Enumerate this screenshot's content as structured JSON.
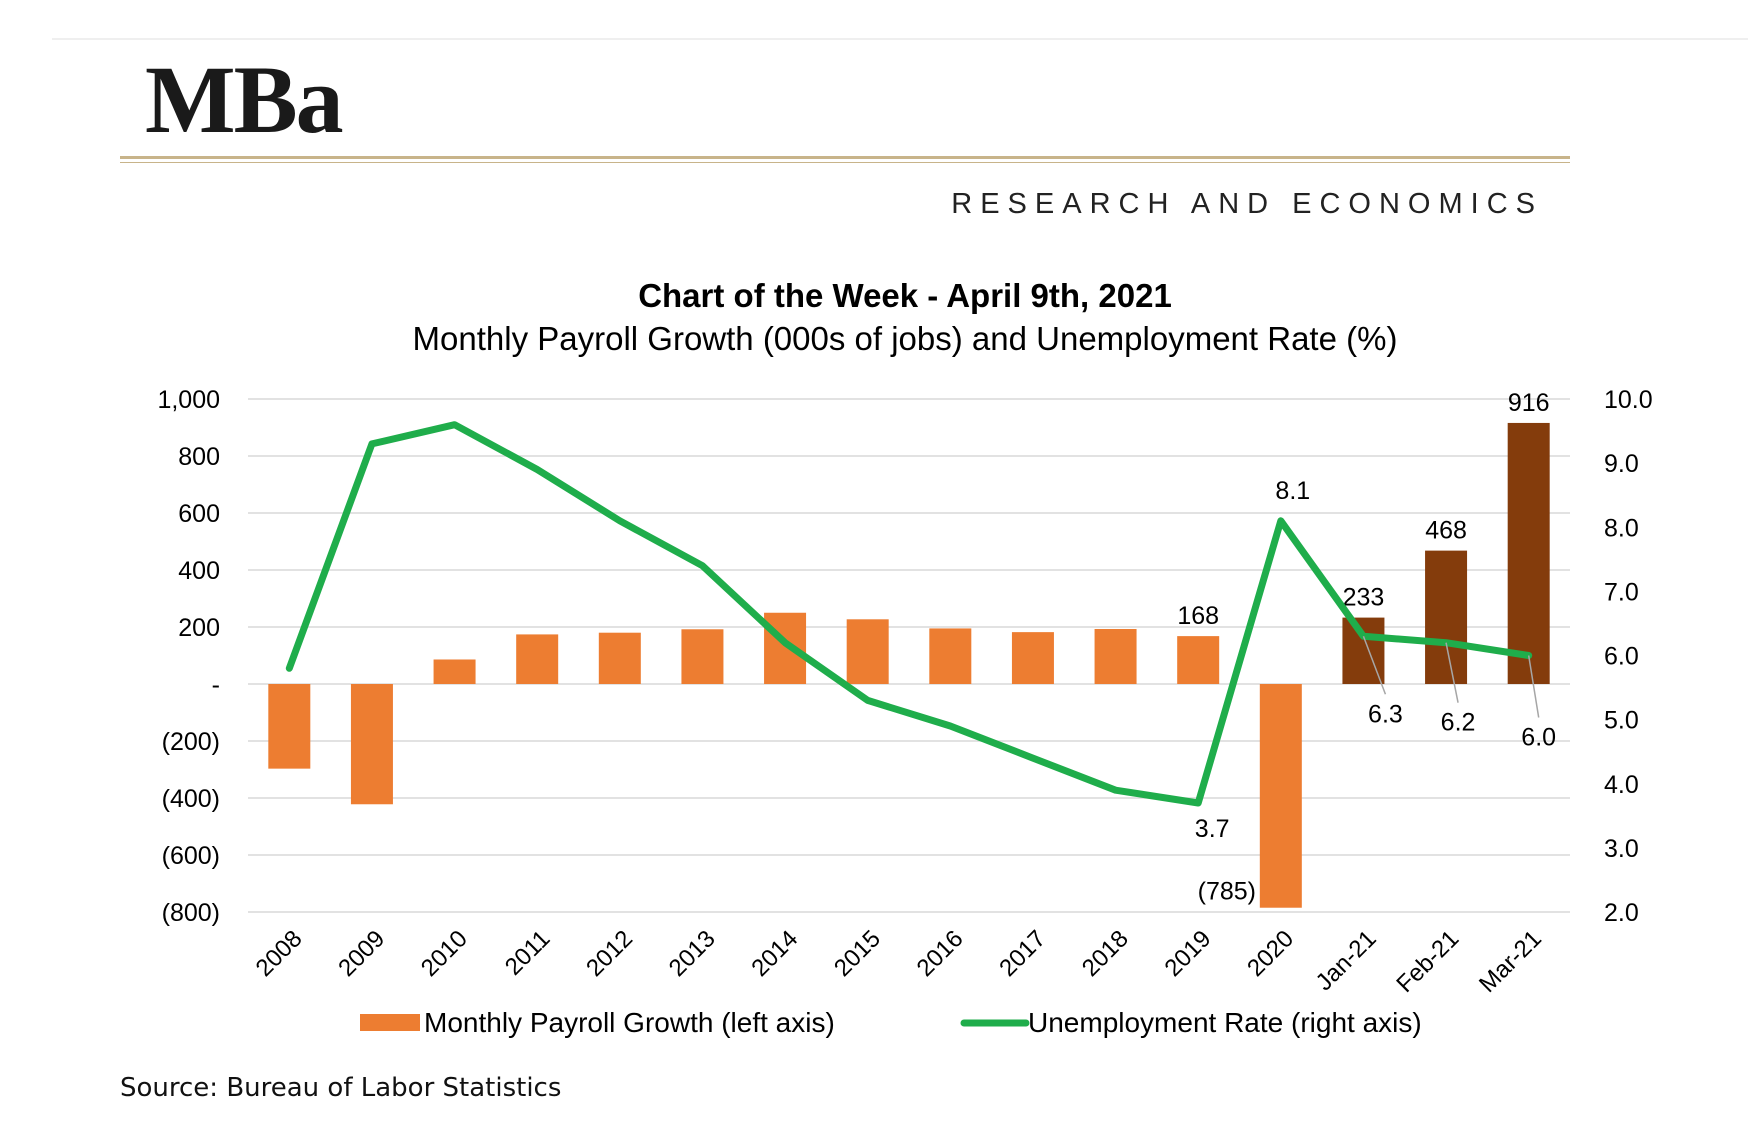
{
  "header": {
    "logo_text": "MBa",
    "tagline": "RESEARCH AND ECONOMICS"
  },
  "footer": {
    "source": "Source: Bureau of Labor Statistics"
  },
  "colors": {
    "bar_annual": "#ed7d31",
    "bar_monthly": "#843c0c",
    "line": "#1fad4b",
    "grid": "#d9d9d9",
    "brand_rule": "#c8b48a"
  },
  "chart_data": {
    "type": "bar",
    "title": "Chart of the Week - April 9th, 2021",
    "subtitle": "Monthly Payroll Growth (000s of jobs) and Unemployment Rate (%)",
    "categories": [
      "2008",
      "2009",
      "2010",
      "2011",
      "2012",
      "2013",
      "2014",
      "2015",
      "2016",
      "2017",
      "2018",
      "2019",
      "2020",
      "Jan-21",
      "Feb-21",
      "Mar-21"
    ],
    "y_left": {
      "min": -800,
      "max": 1000,
      "ticks": [
        "1,000",
        "800",
        "600",
        "400",
        "200",
        "-",
        "(200)",
        "(400)",
        "(600)",
        "(800)"
      ]
    },
    "y_right": {
      "min": 2.0,
      "max": 10.0,
      "ticks": [
        "10.0",
        "9.0",
        "8.0",
        "7.0",
        "6.0",
        "5.0",
        "4.0",
        "3.0",
        "2.0"
      ]
    },
    "grid": true,
    "legend_position": "bottom",
    "series": [
      {
        "name": "Monthly Payroll Growth (left axis)",
        "chart_type": "bar",
        "axis": "left",
        "values": [
          -297,
          -422,
          86,
          174,
          180,
          192,
          250,
          227,
          195,
          182,
          193,
          168,
          -785,
          233,
          468,
          916
        ],
        "labels": [
          null,
          null,
          null,
          null,
          null,
          null,
          null,
          null,
          null,
          null,
          null,
          "168",
          "(785)",
          "233",
          "468",
          "916"
        ]
      },
      {
        "name": "Unemployment Rate (right axis)",
        "chart_type": "line",
        "axis": "right",
        "values": [
          5.8,
          9.3,
          9.6,
          8.9,
          8.1,
          7.4,
          6.2,
          5.3,
          4.9,
          4.4,
          3.9,
          3.7,
          8.1,
          6.3,
          6.2,
          6.0
        ],
        "labels": [
          null,
          null,
          null,
          null,
          null,
          null,
          null,
          null,
          null,
          null,
          null,
          "3.7",
          "8.1",
          "6.3",
          "6.2",
          "6.0"
        ]
      }
    ]
  }
}
